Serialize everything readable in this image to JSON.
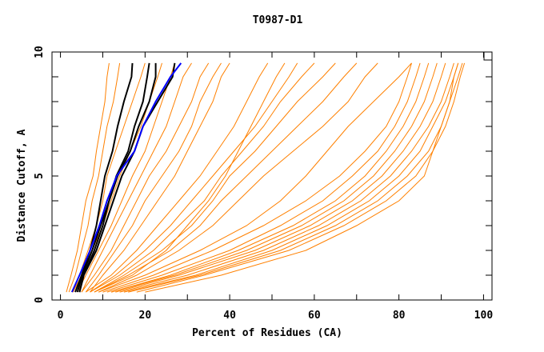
{
  "chart_data": {
    "type": "line",
    "title": "T0987-D1",
    "xlabel": "Percent of Residues (CA)",
    "ylabel": "Distance Cutoff, A",
    "xlim": [
      -2,
      102
    ],
    "ylim": [
      0,
      10
    ],
    "x_ticks": [
      0,
      20,
      40,
      60,
      80,
      100
    ],
    "y_ticks": [
      0,
      5,
      10
    ],
    "grid": false,
    "legend": "none",
    "colors": {
      "models": "#ff8000",
      "highlight_black": "#000000",
      "highlight_blue": "#0000ff"
    },
    "y_levels": [
      0.32,
      1,
      2,
      3,
      4,
      5,
      6,
      7,
      8,
      9,
      9.55
    ],
    "series": [
      {
        "color": "#ff8000",
        "x": [
          1.4,
          2.5,
          4,
          5,
          6,
          7.7,
          8.5,
          9.5,
          10.5,
          11,
          11.5
        ]
      },
      {
        "color": "#ff8000",
        "x": [
          2,
          3.5,
          5,
          6.5,
          7.5,
          9,
          10,
          11,
          12.5,
          13.5,
          14
        ]
      },
      {
        "color": "#ff8000",
        "x": [
          3,
          4.5,
          6.5,
          8.5,
          10,
          11,
          13,
          15,
          17,
          19,
          20
        ]
      },
      {
        "color": "#ff8000",
        "x": [
          3,
          5,
          7.5,
          10,
          12,
          14,
          16.5,
          19,
          21,
          23,
          24
        ]
      },
      {
        "color": "#ff8000",
        "x": [
          4,
          6,
          9,
          12,
          14.5,
          17,
          20,
          22,
          24,
          26,
          27
        ]
      },
      {
        "color": "#ff8000",
        "x": [
          5,
          7,
          10,
          13,
          16,
          19,
          22,
          25,
          27,
          29,
          31
        ]
      },
      {
        "color": "#ff8000",
        "x": [
          5,
          8,
          12,
          15,
          18,
          21,
          25,
          28,
          31,
          33,
          35
        ]
      },
      {
        "color": "#ff8000",
        "x": [
          6,
          9,
          13,
          17,
          20,
          24,
          28,
          31,
          33,
          36,
          38
        ]
      },
      {
        "color": "#ff8000",
        "x": [
          7,
          10,
          15,
          19,
          23,
          27,
          30,
          33,
          36,
          38,
          40
        ]
      },
      {
        "color": "#ff8000",
        "x": [
          6,
          12,
          18,
          23,
          28,
          33,
          37,
          41,
          44,
          47,
          49
        ]
      },
      {
        "color": "#ff8000",
        "x": [
          7,
          13,
          20,
          26,
          31,
          36,
          41,
          46,
          50,
          54,
          56
        ]
      },
      {
        "color": "#ff8000",
        "x": [
          7,
          14,
          22,
          28,
          34,
          38,
          43,
          48,
          52,
          57,
          60
        ]
      },
      {
        "color": "#ff8000",
        "x": [
          8,
          15,
          24,
          31,
          36,
          40,
          46,
          51,
          56,
          62,
          65
        ]
      },
      {
        "color": "#ff8000",
        "x": [
          8,
          16,
          26,
          33,
          38,
          44,
          50,
          56,
          62,
          67,
          70
        ]
      },
      {
        "color": "#ff8000",
        "x": [
          9,
          18,
          28,
          36,
          42,
          48,
          55,
          62,
          68,
          72,
          75
        ]
      },
      {
        "color": "#ff8000",
        "x": [
          8,
          17,
          25,
          30,
          35,
          39,
          42,
          45,
          48,
          51,
          53
        ]
      },
      {
        "color": "#ff8000",
        "x": [
          9,
          20,
          33,
          44,
          52,
          58,
          63,
          68,
          74,
          80,
          83
        ]
      },
      {
        "color": "#ff8000",
        "x": [
          10,
          22,
          36,
          48,
          58,
          66,
          72,
          77,
          80,
          82,
          83
        ]
      },
      {
        "color": "#ff8000",
        "x": [
          11,
          24,
          40,
          52,
          62,
          69,
          75,
          79,
          82,
          84,
          85
        ]
      },
      {
        "color": "#ff8000",
        "x": [
          12,
          26,
          42,
          55,
          65,
          72,
          77,
          81,
          84,
          86,
          87
        ]
      },
      {
        "color": "#ff8000",
        "x": [
          12,
          27,
          44,
          57,
          67,
          74,
          79,
          83,
          86,
          88,
          89
        ]
      },
      {
        "color": "#ff8000",
        "x": [
          13,
          28,
          46,
          59,
          69,
          76,
          81,
          85,
          88,
          90,
          91
        ]
      },
      {
        "color": "#ff8000",
        "x": [
          14,
          30,
          48,
          61,
          71,
          78,
          83,
          87,
          90,
          92,
          93
        ]
      },
      {
        "color": "#ff8000",
        "x": [
          15,
          32,
          50,
          63,
          73,
          80,
          85,
          88,
          91,
          93,
          94
        ]
      },
      {
        "color": "#ff8000",
        "x": [
          16,
          33,
          52,
          65,
          75,
          82,
          87,
          90,
          92,
          94,
          95
        ]
      },
      {
        "color": "#ff8000",
        "x": [
          18,
          34,
          54,
          67,
          77,
          84,
          88,
          91,
          93,
          94.5,
          95.5
        ]
      },
      {
        "color": "#ff8000",
        "x": [
          20,
          38,
          58,
          70,
          80,
          86,
          88,
          90,
          92,
          93,
          94
        ]
      },
      {
        "color": "#000000",
        "x": [
          3.5,
          5,
          7,
          8.5,
          9.5,
          10.5,
          12.3,
          13.5,
          15,
          16.8,
          17
        ]
      },
      {
        "color": "#000000",
        "x": [
          4,
          5.2,
          7.5,
          9.5,
          11.5,
          13.2,
          16,
          17.5,
          19.5,
          20.5,
          21
        ]
      },
      {
        "color": "#000000",
        "x": [
          4.5,
          5.5,
          8,
          10,
          11.5,
          13.5,
          16.5,
          18.5,
          21,
          22.5,
          22.5
        ]
      },
      {
        "color": "#000000",
        "x": [
          4.5,
          5.5,
          8.5,
          10.5,
          12.5,
          14.5,
          17.5,
          19.5,
          23,
          26.5,
          27
        ]
      },
      {
        "color": "#0000ff",
        "x": [
          2.7,
          4.5,
          7,
          9.2,
          11,
          13.3,
          17.5,
          19.5,
          22.5,
          26,
          28.5
        ]
      }
    ]
  }
}
